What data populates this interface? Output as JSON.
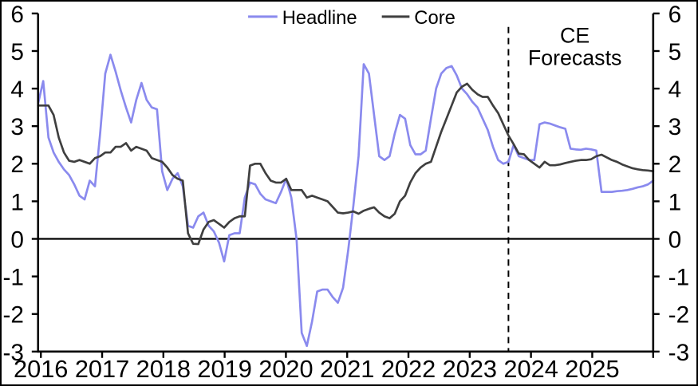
{
  "chart_data": {
    "type": "line",
    "title": "",
    "x_start": "2016-01",
    "x_end": "2025-12",
    "frequency": "monthly",
    "x_tick_years": [
      "2016",
      "2017",
      "2018",
      "2019",
      "2020",
      "2021",
      "2022",
      "2023",
      "2024",
      "2025"
    ],
    "y_ticks": [
      -3,
      -2,
      -1,
      0,
      1,
      2,
      3,
      4,
      5,
      6
    ],
    "ylim": [
      -3,
      6
    ],
    "grid": false,
    "zero_line": true,
    "legend_position": "top-center",
    "forecast_divider_month": "2023-08",
    "forecast_start_index": 91,
    "annotation": {
      "lines": [
        "CE",
        "Forecasts"
      ]
    },
    "series": [
      {
        "name": "Headline",
        "color": "#8a8aee",
        "values": [
          3.6,
          4.2,
          2.7,
          2.3,
          2.05,
          1.85,
          1.7,
          1.45,
          1.15,
          1.05,
          1.55,
          1.4,
          2.8,
          4.4,
          4.9,
          4.45,
          3.95,
          3.5,
          3.1,
          3.7,
          4.15,
          3.7,
          3.5,
          3.45,
          1.8,
          1.3,
          1.6,
          1.75,
          1.4,
          0.35,
          0.3,
          0.6,
          0.7,
          0.35,
          0.2,
          -0.1,
          -0.6,
          0.1,
          0.15,
          0.15,
          1.1,
          1.5,
          1.45,
          1.2,
          1.05,
          1.0,
          0.95,
          1.25,
          1.6,
          1.1,
          0.0,
          -2.5,
          -2.85,
          -2.2,
          -1.4,
          -1.35,
          -1.35,
          -1.55,
          -1.7,
          -1.3,
          -0.3,
          0.9,
          2.2,
          4.65,
          4.4,
          3.3,
          2.2,
          2.1,
          2.2,
          2.8,
          3.3,
          3.2,
          2.5,
          2.25,
          2.25,
          2.35,
          3.2,
          4.0,
          4.4,
          4.55,
          4.6,
          4.35,
          4.0,
          3.85,
          3.65,
          3.5,
          3.2,
          2.9,
          2.45,
          2.1,
          2.0,
          2.05,
          2.5,
          2.2,
          2.15,
          2.1,
          2.1,
          3.05,
          3.1,
          3.07,
          3.02,
          2.97,
          2.93,
          2.4,
          2.38,
          2.37,
          2.4,
          2.38,
          2.35,
          1.25,
          1.25,
          1.25,
          1.27,
          1.28,
          1.3,
          1.33,
          1.37,
          1.4,
          1.45,
          1.55
        ]
      },
      {
        "name": "Core",
        "color": "#3f3f3f",
        "values": [
          3.55,
          3.55,
          3.55,
          3.3,
          2.7,
          2.3,
          2.08,
          2.05,
          2.1,
          2.05,
          2.0,
          2.15,
          2.2,
          2.3,
          2.3,
          2.45,
          2.45,
          2.55,
          2.35,
          2.45,
          2.4,
          2.35,
          2.15,
          2.1,
          2.05,
          1.9,
          1.7,
          1.6,
          1.55,
          0.15,
          -0.13,
          -0.14,
          0.25,
          0.45,
          0.5,
          0.4,
          0.3,
          0.45,
          0.55,
          0.6,
          0.6,
          1.95,
          2.0,
          2.0,
          1.75,
          1.55,
          1.5,
          1.5,
          1.6,
          1.3,
          1.3,
          1.3,
          1.1,
          1.15,
          1.1,
          1.05,
          1.0,
          0.85,
          0.7,
          0.68,
          0.7,
          0.73,
          0.67,
          0.75,
          0.8,
          0.84,
          0.7,
          0.6,
          0.55,
          0.67,
          1.0,
          1.15,
          1.5,
          1.75,
          1.9,
          2.0,
          2.05,
          2.45,
          2.85,
          3.2,
          3.55,
          3.9,
          4.05,
          4.13,
          3.97,
          3.85,
          3.78,
          3.78,
          3.55,
          3.35,
          3.05,
          2.75,
          2.52,
          2.27,
          2.25,
          2.1,
          2.0,
          1.9,
          2.05,
          1.96,
          1.96,
          1.98,
          2.02,
          2.05,
          2.08,
          2.1,
          2.1,
          2.12,
          2.2,
          2.24,
          2.17,
          2.1,
          2.05,
          1.98,
          1.93,
          1.88,
          1.85,
          1.83,
          1.82,
          1.8
        ]
      }
    ]
  }
}
